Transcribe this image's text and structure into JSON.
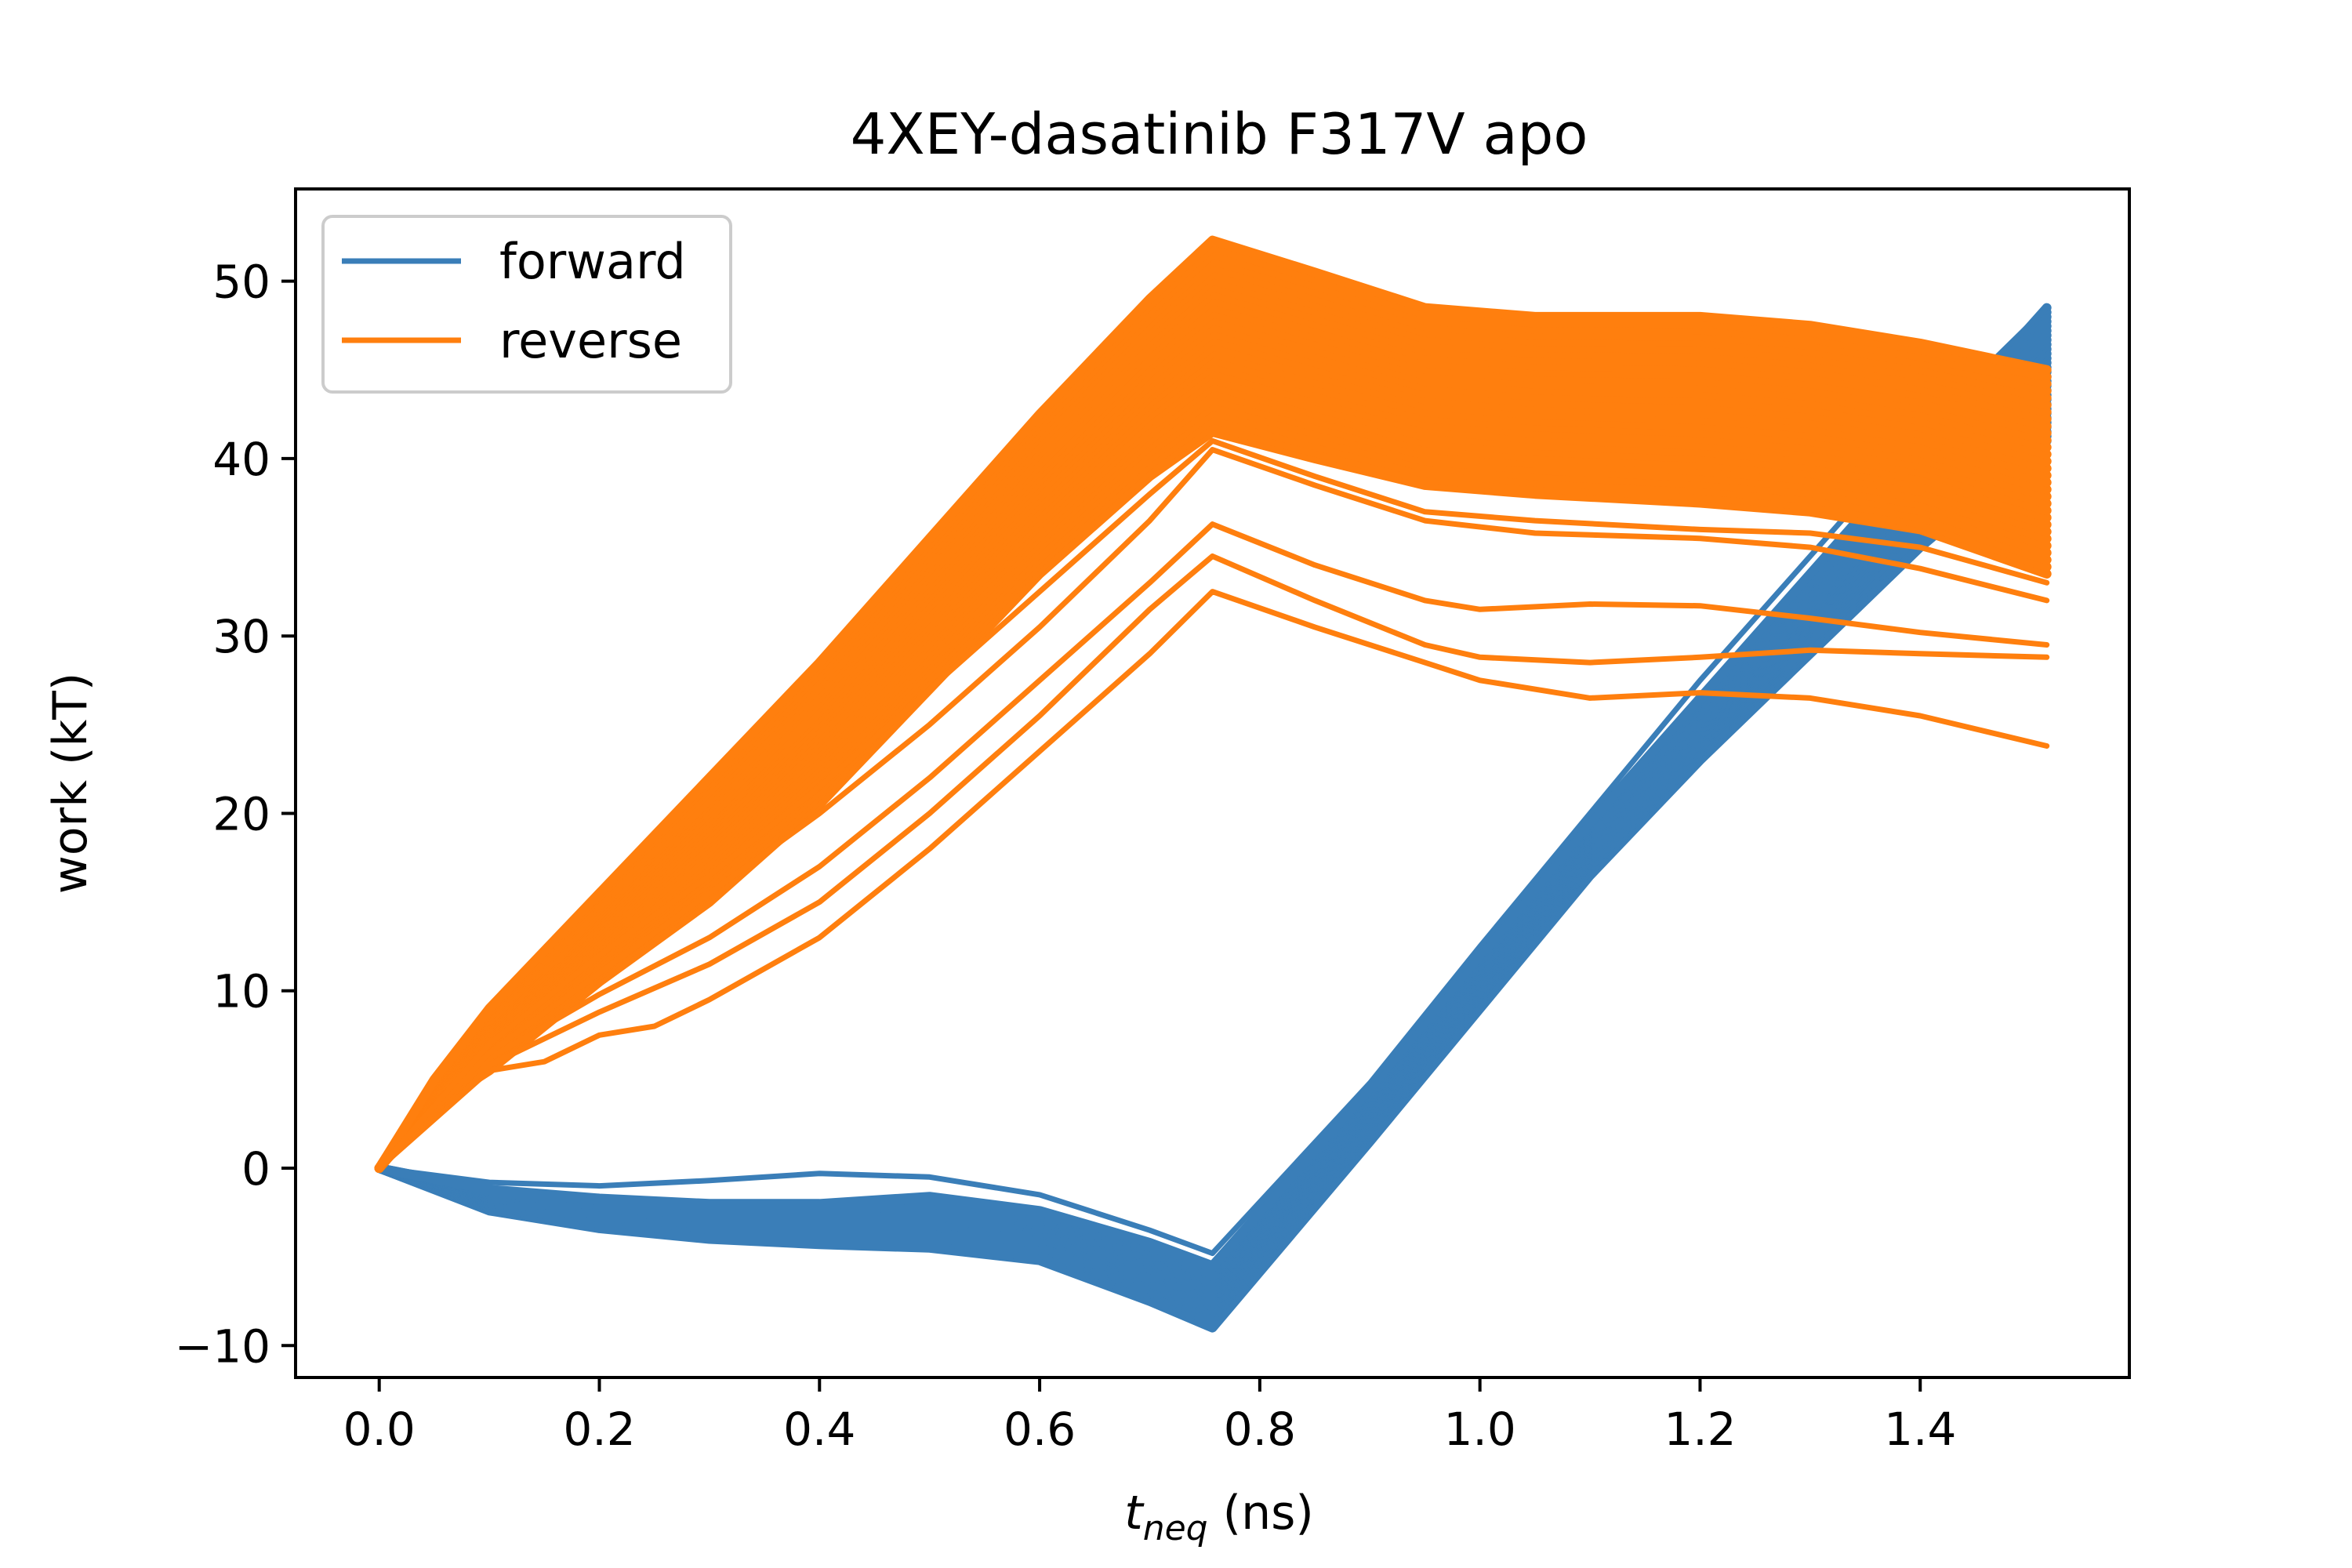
{
  "chart_data": {
    "type": "line",
    "title": "4XEY-dasatinib F317V apo",
    "xlabel": {
      "symbol": "t",
      "subscript": "neq",
      "unit": " (ns)"
    },
    "ylabel": "work (kT)",
    "xlim": [
      -0.076,
      1.59
    ],
    "ylim": [
      -11.8,
      55.2
    ],
    "xticks": [
      0.0,
      0.2,
      0.4,
      0.6,
      0.8,
      1.0,
      1.2,
      1.4
    ],
    "xtick_labels": [
      "0.0",
      "0.2",
      "0.4",
      "0.6",
      "0.8",
      "1.0",
      "1.2",
      "1.4"
    ],
    "yticks": [
      -10,
      0,
      10,
      20,
      30,
      40,
      50
    ],
    "ytick_labels": [
      "−10",
      "0",
      "10",
      "20",
      "30",
      "40",
      "50"
    ],
    "grid": false,
    "legend_position": "upper-left",
    "series": [
      {
        "name": "forward",
        "color": "#3a7eb8",
        "band_low": [
          [
            0.0,
            0.0
          ],
          [
            0.1,
            -2.4
          ],
          [
            0.2,
            -3.4
          ],
          [
            0.3,
            -4.0
          ],
          [
            0.4,
            -4.3
          ],
          [
            0.5,
            -4.5
          ],
          [
            0.6,
            -5.2
          ],
          [
            0.7,
            -7.5
          ],
          [
            0.757,
            -9.0
          ],
          [
            0.9,
            1.5
          ],
          [
            1.0,
            9.0
          ],
          [
            1.1,
            16.5
          ],
          [
            1.2,
            23.0
          ],
          [
            1.3,
            29.0
          ],
          [
            1.4,
            35.0
          ],
          [
            1.515,
            41.0
          ]
        ],
        "band_high": [
          [
            0.0,
            0.0
          ],
          [
            0.1,
            -1.2
          ],
          [
            0.2,
            -1.7
          ],
          [
            0.3,
            -2.0
          ],
          [
            0.4,
            -2.0
          ],
          [
            0.5,
            -1.6
          ],
          [
            0.6,
            -2.4
          ],
          [
            0.7,
            -4.2
          ],
          [
            0.757,
            -5.5
          ],
          [
            0.9,
            4.5
          ],
          [
            1.0,
            12.0
          ],
          [
            1.1,
            19.5
          ],
          [
            1.2,
            26.5
          ],
          [
            1.3,
            33.5
          ],
          [
            1.4,
            40.5
          ],
          [
            1.515,
            48.5
          ]
        ],
        "outliers": [
          [
            [
              0.0,
              0.0
            ],
            [
              0.1,
              -0.8
            ],
            [
              0.2,
              -1.0
            ],
            [
              0.3,
              -0.7
            ],
            [
              0.4,
              -0.3
            ],
            [
              0.5,
              -0.5
            ],
            [
              0.6,
              -1.5
            ],
            [
              0.7,
              -3.5
            ],
            [
              0.757,
              -4.8
            ],
            [
              0.9,
              4.8
            ],
            [
              1.0,
              12.5
            ],
            [
              1.1,
              20.0
            ],
            [
              1.2,
              27.5
            ],
            [
              1.3,
              34.5
            ],
            [
              1.4,
              41.5
            ],
            [
              1.515,
              48.5
            ]
          ]
        ]
      },
      {
        "name": "reverse",
        "color": "#ff7f0e",
        "band_low": [
          [
            0.0,
            0.0
          ],
          [
            0.05,
            3.5
          ],
          [
            0.1,
            5.5
          ],
          [
            0.2,
            10.5
          ],
          [
            0.3,
            15.0
          ],
          [
            0.4,
            20.5
          ],
          [
            0.5,
            27.0
          ],
          [
            0.6,
            33.5
          ],
          [
            0.7,
            39.0
          ],
          [
            0.757,
            41.5
          ],
          [
            0.85,
            40.0
          ],
          [
            0.95,
            38.5
          ],
          [
            1.05,
            38.0
          ],
          [
            1.2,
            37.5
          ],
          [
            1.3,
            37.0
          ],
          [
            1.4,
            36.0
          ],
          [
            1.515,
            33.5
          ]
        ],
        "band_high": [
          [
            0.0,
            0.0
          ],
          [
            0.05,
            5.0
          ],
          [
            0.1,
            9.0
          ],
          [
            0.2,
            15.5
          ],
          [
            0.3,
            22.0
          ],
          [
            0.4,
            28.5
          ],
          [
            0.5,
            35.5
          ],
          [
            0.6,
            42.5
          ],
          [
            0.7,
            49.0
          ],
          [
            0.757,
            52.3
          ],
          [
            0.85,
            50.5
          ],
          [
            0.95,
            48.5
          ],
          [
            1.05,
            48.0
          ],
          [
            1.2,
            48.0
          ],
          [
            1.3,
            47.5
          ],
          [
            1.4,
            46.5
          ],
          [
            1.515,
            45.0
          ]
        ],
        "outliers": [
          [
            [
              0.0,
              0.0
            ],
            [
              0.1,
              5.5
            ],
            [
              0.15,
              6.0
            ],
            [
              0.2,
              7.5
            ],
            [
              0.25,
              8.0
            ],
            [
              0.3,
              9.5
            ],
            [
              0.4,
              13.0
            ],
            [
              0.5,
              18.0
            ],
            [
              0.6,
              23.5
            ],
            [
              0.7,
              29.0
            ],
            [
              0.757,
              32.5
            ],
            [
              0.85,
              30.5
            ],
            [
              0.95,
              28.5
            ],
            [
              1.0,
              27.5
            ],
            [
              1.1,
              26.5
            ],
            [
              1.2,
              26.8
            ],
            [
              1.3,
              26.5
            ],
            [
              1.4,
              25.5
            ],
            [
              1.515,
              23.8
            ]
          ],
          [
            [
              0.0,
              0.0
            ],
            [
              0.1,
              5.8
            ],
            [
              0.2,
              8.8
            ],
            [
              0.3,
              11.5
            ],
            [
              0.4,
              15.0
            ],
            [
              0.5,
              20.0
            ],
            [
              0.6,
              25.5
            ],
            [
              0.7,
              31.5
            ],
            [
              0.757,
              34.5
            ],
            [
              0.85,
              32.0
            ],
            [
              0.95,
              29.5
            ],
            [
              1.0,
              28.8
            ],
            [
              1.1,
              28.5
            ],
            [
              1.2,
              28.8
            ],
            [
              1.3,
              29.2
            ],
            [
              1.4,
              29.0
            ],
            [
              1.515,
              28.8
            ]
          ],
          [
            [
              0.0,
              0.0
            ],
            [
              0.1,
              6.2
            ],
            [
              0.2,
              9.8
            ],
            [
              0.3,
              13.0
            ],
            [
              0.4,
              17.0
            ],
            [
              0.5,
              22.0
            ],
            [
              0.6,
              27.5
            ],
            [
              0.7,
              33.0
            ],
            [
              0.757,
              36.3
            ],
            [
              0.85,
              34.0
            ],
            [
              0.95,
              32.0
            ],
            [
              1.0,
              31.5
            ],
            [
              1.1,
              31.8
            ],
            [
              1.2,
              31.7
            ],
            [
              1.3,
              31.0
            ],
            [
              1.4,
              30.2
            ],
            [
              1.515,
              29.5
            ]
          ],
          [
            [
              0.0,
              0.0
            ],
            [
              0.1,
              6.5
            ],
            [
              0.2,
              11.0
            ],
            [
              0.3,
              15.5
            ],
            [
              0.4,
              20.0
            ],
            [
              0.5,
              25.0
            ],
            [
              0.6,
              30.5
            ],
            [
              0.7,
              36.5
            ],
            [
              0.757,
              40.5
            ],
            [
              0.85,
              38.5
            ],
            [
              0.95,
              36.5
            ],
            [
              1.05,
              35.8
            ],
            [
              1.2,
              35.5
            ],
            [
              1.3,
              35.0
            ],
            [
              1.4,
              33.8
            ],
            [
              1.515,
              32.0
            ]
          ],
          [
            [
              0.0,
              0.0
            ],
            [
              0.1,
              7.0
            ],
            [
              0.2,
              12.0
            ],
            [
              0.3,
              16.5
            ],
            [
              0.4,
              21.5
            ],
            [
              0.5,
              27.0
            ],
            [
              0.6,
              32.5
            ],
            [
              0.7,
              38.0
            ],
            [
              0.757,
              41.0
            ],
            [
              0.85,
              39.0
            ],
            [
              0.95,
              37.0
            ],
            [
              1.05,
              36.5
            ],
            [
              1.2,
              36.0
            ],
            [
              1.3,
              35.8
            ],
            [
              1.4,
              35.0
            ],
            [
              1.515,
              33.0
            ]
          ]
        ]
      }
    ]
  }
}
